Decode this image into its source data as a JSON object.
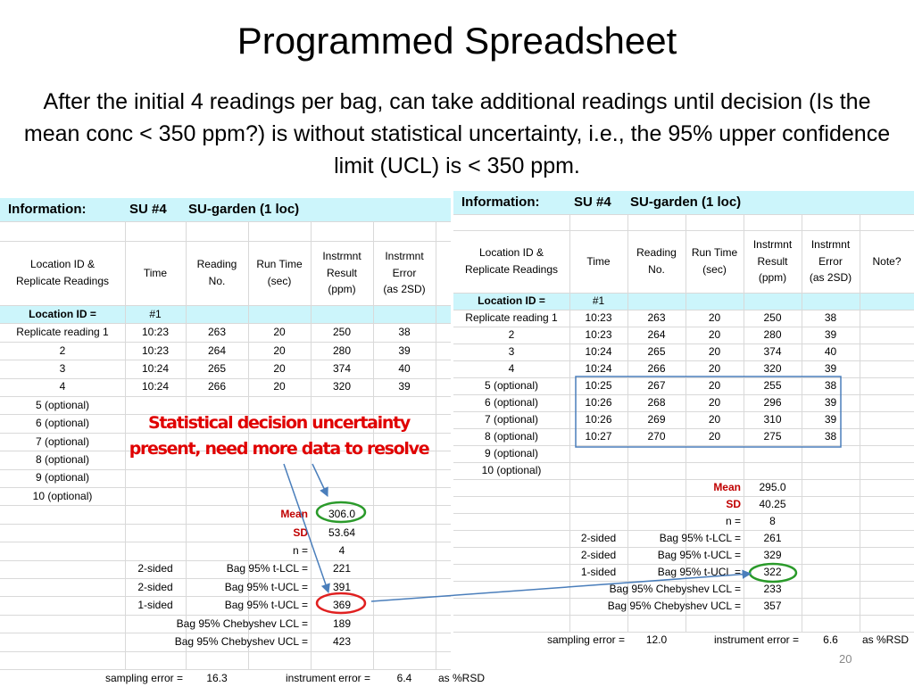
{
  "title": "Programmed Spreadsheet",
  "subtitle": "After the initial 4 readings per bag, can take additional readings until decision (Is the mean conc < 350 ppm?) is without statistical uncertainty, i.e., the 95% upper confidence limit (UCL) is < 350 ppm.",
  "sheets": [
    {
      "info": [
        "Information:",
        "SU #4",
        "SU-garden (1 loc)"
      ],
      "headers": [
        [
          "Location ID &",
          "Replicate Readings"
        ],
        [
          "Time"
        ],
        [
          "Reading",
          "No."
        ],
        [
          "Run Time",
          "(sec)"
        ],
        [
          "Instrmnt",
          "Result",
          "(ppm)"
        ],
        [
          "Instrmnt",
          "Error",
          "(as 2SD)"
        ]
      ],
      "location": [
        "Location ID =",
        "#1"
      ],
      "rows": [
        [
          "Replicate reading 1",
          "10:23",
          "263",
          "20",
          "250",
          "38"
        ],
        [
          "2",
          "10:23",
          "264",
          "20",
          "280",
          "39"
        ],
        [
          "3",
          "10:24",
          "265",
          "20",
          "374",
          "40"
        ],
        [
          "4",
          "10:24",
          "266",
          "20",
          "320",
          "39"
        ],
        [
          "5 (optional)"
        ],
        [
          "6 (optional)"
        ],
        [
          "7 (optional)"
        ],
        [
          "8 (optional)"
        ],
        [
          "9 (optional)"
        ],
        [
          "10 (optional)"
        ]
      ],
      "stats": [
        {
          "label": "Mean",
          "value": "306.0"
        },
        {
          "label": "SD",
          "value": "53.64"
        },
        {
          "label": "n =",
          "value": "4"
        },
        {
          "side": "2-sided",
          "label": "Bag 95% t-LCL =",
          "value": "221"
        },
        {
          "side": "2-sided",
          "label": "Bag 95% t-UCL =",
          "value": "391"
        },
        {
          "side": "1-sided",
          "label": "Bag 95% t-UCL =",
          "value": "369"
        },
        {
          "label": "Bag 95% Chebyshev LCL =",
          "value": "189"
        },
        {
          "label": "Bag 95% Chebyshev UCL =",
          "value": "423"
        }
      ],
      "footer": [
        "sampling error =",
        "16.3",
        "instrument error =",
        "6.4",
        "as %RSD"
      ]
    },
    {
      "info": [
        "Information:",
        "SU #4",
        "SU-garden (1 loc)"
      ],
      "headers": [
        [
          "Location ID &",
          "Replicate Readings"
        ],
        [
          "Time"
        ],
        [
          "Reading",
          "No."
        ],
        [
          "Run Time",
          "(sec)"
        ],
        [
          "Instrmnt",
          "Result",
          "(ppm)"
        ],
        [
          "Instrmnt",
          "Error",
          "(as 2SD)"
        ],
        [
          "Note?"
        ]
      ],
      "location": [
        "Location ID =",
        "#1"
      ],
      "rows": [
        [
          "Replicate reading 1",
          "10:23",
          "263",
          "20",
          "250",
          "38"
        ],
        [
          "2",
          "10:23",
          "264",
          "20",
          "280",
          "39"
        ],
        [
          "3",
          "10:24",
          "265",
          "20",
          "374",
          "40"
        ],
        [
          "4",
          "10:24",
          "266",
          "20",
          "320",
          "39"
        ],
        [
          "5 (optional)",
          "10:25",
          "267",
          "20",
          "255",
          "38"
        ],
        [
          "6 (optional)",
          "10:26",
          "268",
          "20",
          "296",
          "39"
        ],
        [
          "7 (optional)",
          "10:26",
          "269",
          "20",
          "310",
          "39"
        ],
        [
          "8 (optional)",
          "10:27",
          "270",
          "20",
          "275",
          "38"
        ],
        [
          "9 (optional)"
        ],
        [
          "10 (optional)"
        ]
      ],
      "stats": [
        {
          "label": "Mean",
          "value": "295.0"
        },
        {
          "label": "SD",
          "value": "40.25"
        },
        {
          "label": "n =",
          "value": "8"
        },
        {
          "side": "2-sided",
          "label": "Bag 95% t-LCL =",
          "value": "261"
        },
        {
          "side": "2-sided",
          "label": "Bag 95% t-UCL =",
          "value": "329"
        },
        {
          "side": "1-sided",
          "label": "Bag 95% t-UCL =",
          "value": "322"
        },
        {
          "label": "Bag 95% Chebyshev LCL =",
          "value": "233"
        },
        {
          "label": "Bag 95% Chebyshev UCL =",
          "value": "357"
        }
      ],
      "footer": [
        "sampling error =",
        "12.0",
        "instrument error =",
        "6.6",
        "as %RSD"
      ]
    }
  ],
  "annotation": [
    "Statistical decision uncertainty",
    "present, need more data to resolve"
  ],
  "page_number": "20"
}
